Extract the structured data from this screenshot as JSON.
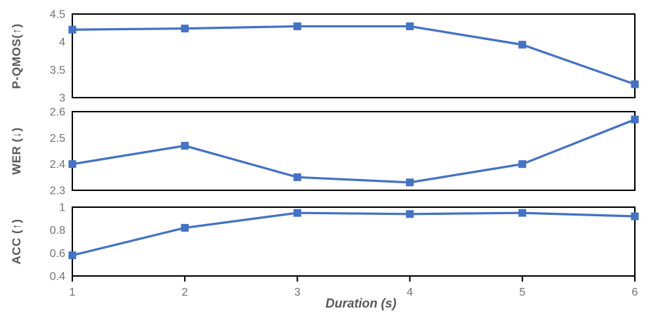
{
  "chart_data": {
    "type": "line",
    "title": "",
    "xlabel": "Duration (s)",
    "x": [
      1,
      2,
      3,
      4,
      5,
      6
    ],
    "x_tick_labels": [
      "1",
      "2",
      "3",
      "4",
      "5",
      "6"
    ],
    "marker": "square",
    "grid": false,
    "legend": "none",
    "series": [
      {
        "id": "p-qmos",
        "ylabel": "P-QMOS(↑)",
        "ylim": [
          3,
          4.5
        ],
        "yticks": [
          "3",
          "3.5",
          "4",
          "4.5"
        ],
        "values": [
          4.22,
          4.24,
          4.28,
          4.28,
          3.95,
          3.24
        ]
      },
      {
        "id": "wer",
        "ylabel": "WER (↓)",
        "ylim": [
          2.3,
          2.6
        ],
        "yticks": [
          "2.3",
          "2.4",
          "2.5",
          "2.6"
        ],
        "values": [
          2.4,
          2.47,
          2.35,
          2.33,
          2.4,
          2.57
        ]
      },
      {
        "id": "acc",
        "ylabel": "ACC (↑)",
        "ylim": [
          0.4,
          1
        ],
        "yticks": [
          "0.4",
          "0.6",
          "0.8",
          "1"
        ],
        "values": [
          0.58,
          0.82,
          0.95,
          0.94,
          0.95,
          0.92
        ]
      }
    ],
    "colors": {
      "line": "#4472C4",
      "frame": "#000000",
      "tick_label": "#737373",
      "axis_label": "#595959"
    }
  }
}
